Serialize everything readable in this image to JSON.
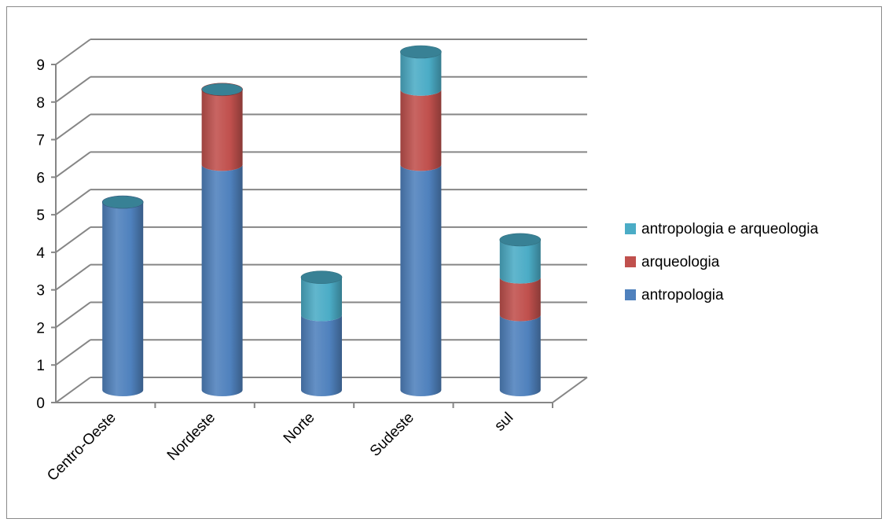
{
  "chart_data": {
    "type": "bar",
    "stacked": true,
    "style": "3d-cylinder",
    "title": "",
    "xlabel": "",
    "ylabel": "",
    "categories": [
      "Centro-Oeste",
      "Nordeste",
      "Norte",
      "Sudeste",
      "sul"
    ],
    "series": [
      {
        "name": "antropologia",
        "values": [
          5,
          6,
          2,
          6,
          2
        ],
        "color": "#4f81bd"
      },
      {
        "name": "arqueologia",
        "values": [
          0,
          2,
          0,
          2,
          1
        ],
        "color": "#c0504d"
      },
      {
        "name": "antropologia e arqueologia",
        "values": [
          0,
          0,
          1,
          1,
          1
        ],
        "color": "#4bacc6"
      }
    ],
    "ylim": [
      0,
      9
    ],
    "yticks": [
      "0",
      "1",
      "2",
      "3",
      "4",
      "5",
      "6",
      "7",
      "8",
      "9"
    ],
    "grid": true,
    "legend_position": "right",
    "legend_order": [
      "antropologia e arqueologia",
      "arqueologia",
      "antropologia"
    ]
  }
}
